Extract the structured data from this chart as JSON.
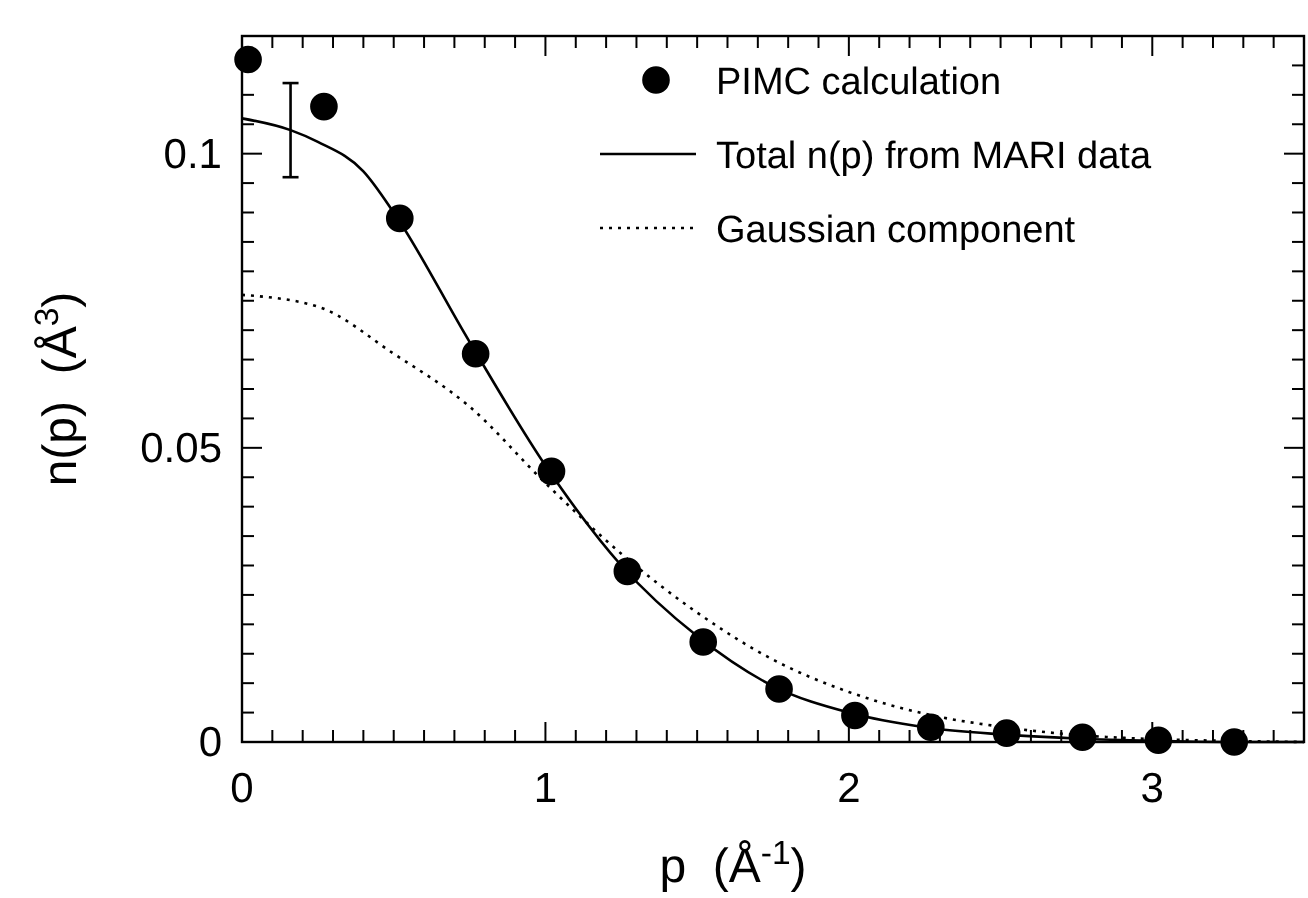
{
  "chart_data": {
    "type": "line",
    "xlabel": "p  (Å$^{-1}$)",
    "ylabel": "n(p)  (Å$^{3}$)",
    "xlim": [
      0,
      3.5
    ],
    "ylim": [
      0,
      0.12
    ],
    "xticks": [
      0,
      {
        "value": 0.1,
        "label": null
      },
      {
        "value": 0.2,
        "label": null
      },
      {
        "value": 0.3,
        "label": null
      },
      {
        "value": 0.4,
        "label": null
      },
      {
        "value": 0.5,
        "label": null
      },
      {
        "value": 0.6,
        "label": null
      },
      {
        "value": 0.7,
        "label": null
      },
      {
        "value": 0.8,
        "label": null
      },
      {
        "value": 0.9,
        "label": null
      },
      1,
      {
        "value": 1.1,
        "label": null
      },
      {
        "value": 1.2,
        "label": null
      },
      {
        "value": 1.3,
        "label": null
      },
      {
        "value": 1.4,
        "label": null
      },
      {
        "value": 1.5,
        "label": null
      },
      {
        "value": 1.6,
        "label": null
      },
      {
        "value": 1.7,
        "label": null
      },
      {
        "value": 1.8,
        "label": null
      },
      {
        "value": 1.9,
        "label": null
      },
      2,
      {
        "value": 2.1,
        "label": null
      },
      {
        "value": 2.2,
        "label": null
      },
      {
        "value": 2.3,
        "label": null
      },
      {
        "value": 2.4,
        "label": null
      },
      {
        "value": 2.5,
        "label": null
      },
      {
        "value": 2.6,
        "label": null
      },
      {
        "value": 2.7,
        "label": null
      },
      {
        "value": 2.8,
        "label": null
      },
      {
        "value": 2.9,
        "label": null
      },
      3,
      {
        "value": 3.1,
        "label": null
      },
      {
        "value": 3.2,
        "label": null
      },
      {
        "value": 3.3,
        "label": null
      },
      {
        "value": 3.4,
        "label": null
      }
    ],
    "yticks": [
      0,
      {
        "value": 0.005,
        "label": null
      },
      {
        "value": 0.01,
        "label": null
      },
      {
        "value": 0.015,
        "label": null
      },
      {
        "value": 0.02,
        "label": null
      },
      {
        "value": 0.025,
        "label": null
      },
      {
        "value": 0.03,
        "label": null
      },
      {
        "value": 0.035,
        "label": null
      },
      {
        "value": 0.04,
        "label": null
      },
      {
        "value": 0.045,
        "label": null
      },
      0.05,
      {
        "value": 0.055,
        "label": null
      },
      {
        "value": 0.06,
        "label": null
      },
      {
        "value": 0.065,
        "label": null
      },
      {
        "value": 0.07,
        "label": null
      },
      {
        "value": 0.075,
        "label": null
      },
      {
        "value": 0.08,
        "label": null
      },
      {
        "value": 0.085,
        "label": null
      },
      {
        "value": 0.09,
        "label": null
      },
      {
        "value": 0.095,
        "label": null
      },
      0.1,
      {
        "value": 0.105,
        "label": null
      },
      {
        "value": 0.11,
        "label": null
      },
      {
        "value": 0.115,
        "label": null
      }
    ],
    "grid": false,
    "legend": "top right",
    "series": [
      {
        "name": "PIMC calculation",
        "type": "scatter",
        "marker": "circle",
        "color": "#000000",
        "x": [
          0.02,
          0.27,
          0.52,
          0.77,
          1.02,
          1.27,
          1.52,
          1.77,
          2.02,
          2.27,
          2.52,
          2.77,
          3.02,
          3.27
        ],
        "values": [
          0.116,
          0.108,
          0.089,
          0.066,
          0.046,
          0.029,
          0.017,
          0.009,
          0.0045,
          0.0025,
          0.0015,
          0.0008,
          0.0003,
          0
        ]
      },
      {
        "name": "Total n(p) from MARI data",
        "line_style": "solid",
        "marker": "none",
        "color": "#000000",
        "x": [
          0,
          0.16,
          0.25,
          0.4,
          0.5,
          0.75,
          1,
          1.25,
          1.5,
          1.75,
          2,
          2.25,
          2.5,
          2.75,
          3,
          3.25,
          3.5
        ],
        "values": [
          0.106,
          0.104,
          0.102,
          0.097,
          0.09,
          0.068,
          0.047,
          0.03,
          0.018,
          0.0095,
          0.005,
          0.0025,
          0.0013,
          0.0006,
          0.0002,
          0,
          0
        ],
        "errors": [
          null,
          [
            0.096,
            0.112
          ],
          null,
          null,
          null,
          null,
          null,
          null,
          null,
          null,
          null,
          null,
          null,
          null,
          null,
          null,
          null
        ]
      },
      {
        "name": "Gaussian component",
        "line_style": "dotted",
        "marker": "none",
        "color": "#000000",
        "x": [
          0,
          0.25,
          0.5,
          0.75,
          1,
          1.25,
          1.5,
          1.75,
          2,
          2.25,
          2.5,
          2.75,
          3,
          3.25,
          3.5
        ],
        "values": [
          0.076,
          0.074,
          0.066,
          0.057,
          0.044,
          0.032,
          0.022,
          0.014,
          0.0085,
          0.0048,
          0.0026,
          0.0012,
          0.0005,
          0.0002,
          0
        ]
      }
    ]
  }
}
